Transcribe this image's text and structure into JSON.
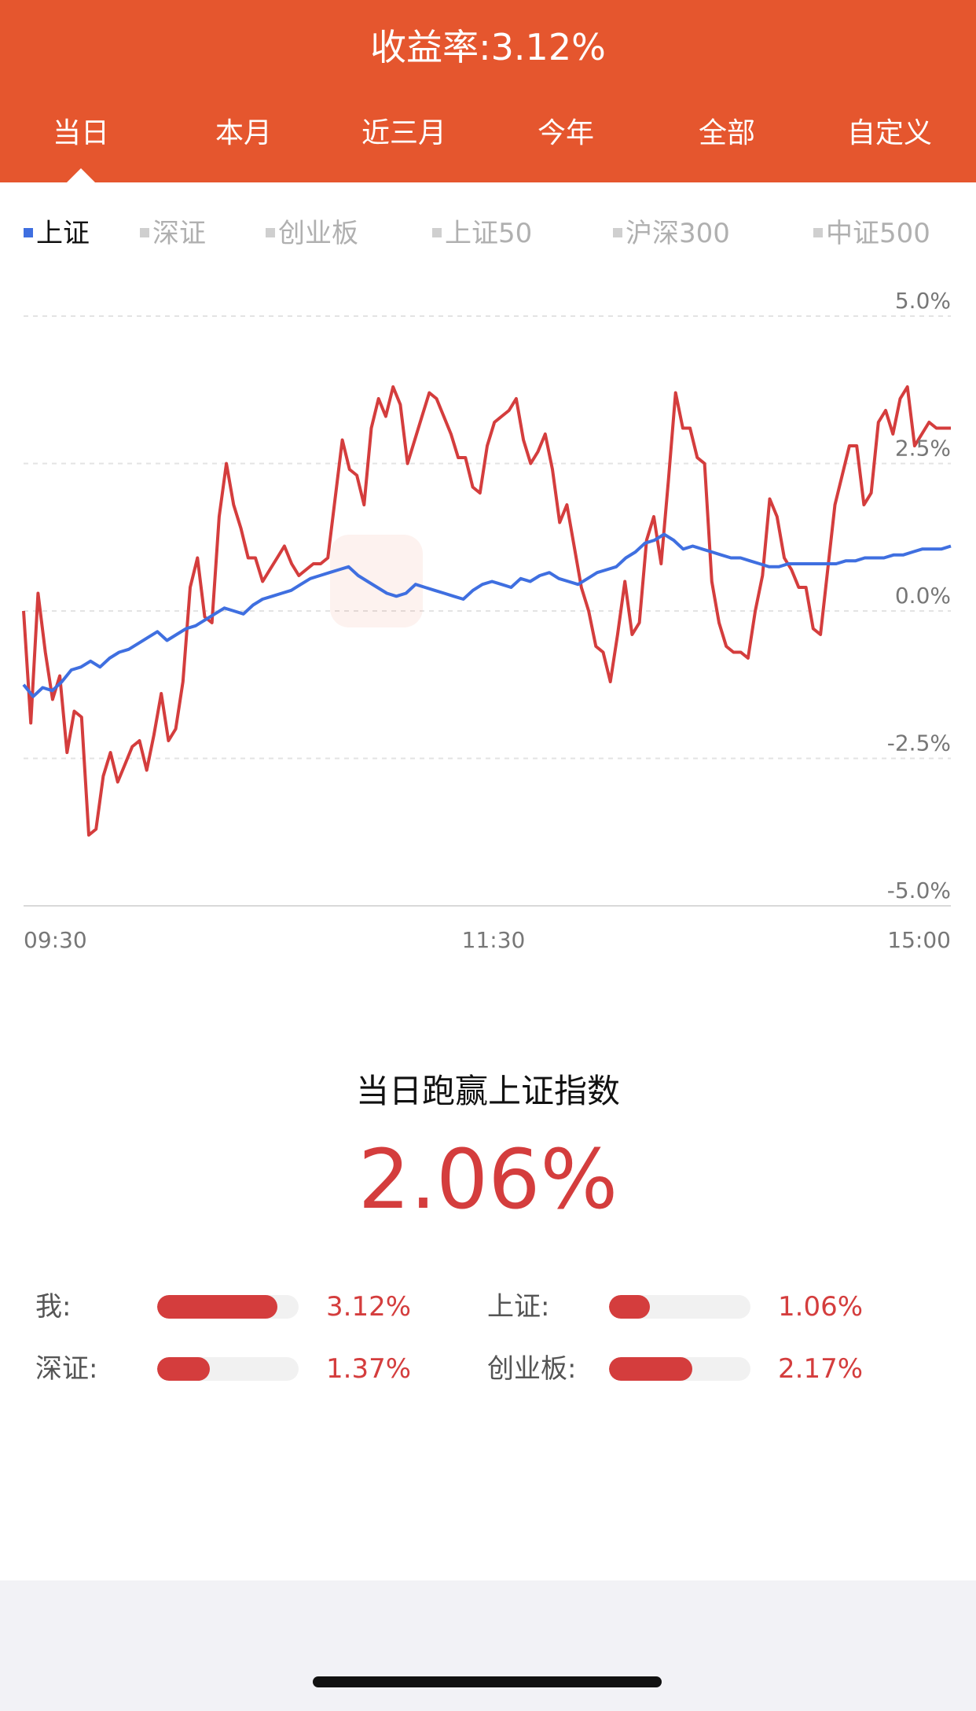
{
  "header": {
    "title": "收益率:3.12%",
    "tabs": [
      "当日",
      "本月",
      "近三月",
      "今年",
      "全部",
      "自定义"
    ],
    "active_tab": "当日"
  },
  "index_selector": {
    "items": [
      "上证",
      "深证",
      "创业板",
      "上证50",
      "沪深300",
      "中证500"
    ],
    "active": "上证"
  },
  "colors": {
    "accent": "#E5562E",
    "my_series": "#D43D3D",
    "index_series": "#3F6FE0"
  },
  "chart_data": {
    "type": "line",
    "y_axis": {
      "ticks": [
        "5.0%",
        "2.5%",
        "0.0%",
        "-2.5%",
        "-5.0%"
      ],
      "min": -5.0,
      "max": 5.0
    },
    "x_axis": {
      "ticks": [
        "09:30",
        "11:30",
        "15:00"
      ]
    },
    "grid": true,
    "series": [
      {
        "values": [
          0.0,
          -1.9,
          0.3,
          -0.7,
          -1.5,
          -1.1,
          -2.4,
          -1.7,
          -1.8,
          -3.8,
          -3.7,
          -2.8,
          -2.4,
          -2.9,
          -2.6,
          -2.3,
          -2.2,
          -2.7,
          -2.1,
          -1.4,
          -2.2,
          -2.0,
          -1.2,
          0.4,
          0.9,
          -0.1,
          -0.2,
          1.6,
          2.5,
          1.8,
          1.4,
          0.9,
          0.9,
          0.5,
          0.7,
          0.9,
          1.1,
          0.8,
          0.6,
          0.7,
          0.8,
          0.8,
          0.9,
          1.9,
          2.9,
          2.4,
          2.3,
          1.8,
          3.1,
          3.6,
          3.3,
          3.8,
          3.5,
          2.5,
          2.9,
          3.3,
          3.7,
          3.6,
          3.3,
          3.0,
          2.6,
          2.6,
          2.1,
          2.0,
          2.8,
          3.2,
          3.3,
          3.4,
          3.6,
          2.9,
          2.5,
          2.7,
          3.0,
          2.4,
          1.5,
          1.8,
          1.1,
          0.4,
          0.0,
          -0.6,
          -0.7,
          -1.2,
          -0.4,
          0.5,
          -0.4,
          -0.2,
          1.2,
          1.6,
          0.8,
          2.2,
          3.7,
          3.1,
          3.1,
          2.6,
          2.5,
          0.5,
          -0.2,
          -0.6,
          -0.7,
          -0.7,
          -0.8,
          0.0,
          0.6,
          1.9,
          1.6,
          0.9,
          0.7,
          0.4,
          0.4,
          -0.3,
          -0.4,
          0.7,
          1.8,
          2.3,
          2.8,
          2.8,
          1.8,
          2.0,
          3.2,
          3.4,
          3.0,
          3.6,
          3.8,
          2.8,
          3.0,
          3.2,
          3.1,
          3.1,
          3.1
        ],
        "color": "#D43D3D"
      },
      {
        "values": [
          -1.25,
          -1.45,
          -1.3,
          -1.35,
          -1.2,
          -1.0,
          -0.95,
          -0.85,
          -0.95,
          -0.8,
          -0.7,
          -0.65,
          -0.55,
          -0.45,
          -0.35,
          -0.5,
          -0.4,
          -0.3,
          -0.25,
          -0.15,
          -0.05,
          0.05,
          0.0,
          -0.05,
          0.1,
          0.2,
          0.25,
          0.3,
          0.35,
          0.45,
          0.55,
          0.6,
          0.65,
          0.7,
          0.75,
          0.6,
          0.5,
          0.4,
          0.3,
          0.25,
          0.3,
          0.45,
          0.4,
          0.35,
          0.3,
          0.25,
          0.2,
          0.35,
          0.45,
          0.5,
          0.45,
          0.4,
          0.55,
          0.5,
          0.6,
          0.65,
          0.55,
          0.5,
          0.45,
          0.55,
          0.65,
          0.7,
          0.75,
          0.9,
          1.0,
          1.15,
          1.2,
          1.3,
          1.2,
          1.05,
          1.1,
          1.05,
          1.0,
          0.95,
          0.9,
          0.9,
          0.85,
          0.8,
          0.75,
          0.75,
          0.8,
          0.8,
          0.8,
          0.8,
          0.8,
          0.8,
          0.85,
          0.85,
          0.9,
          0.9,
          0.9,
          0.95,
          0.95,
          1.0,
          1.05,
          1.05,
          1.05,
          1.1
        ],
        "color": "#3F6FE0"
      }
    ]
  },
  "summary": {
    "title": "当日跑赢上证指数",
    "value": "2.06%"
  },
  "comparisons": [
    {
      "label": "我:",
      "value": "3.12%",
      "ratio": 0.85
    },
    {
      "label": "上证:",
      "value": "1.06%",
      "ratio": 0.29
    },
    {
      "label": "深证:",
      "value": "1.37%",
      "ratio": 0.37
    },
    {
      "label": "创业板:",
      "value": "2.17%",
      "ratio": 0.59
    }
  ]
}
